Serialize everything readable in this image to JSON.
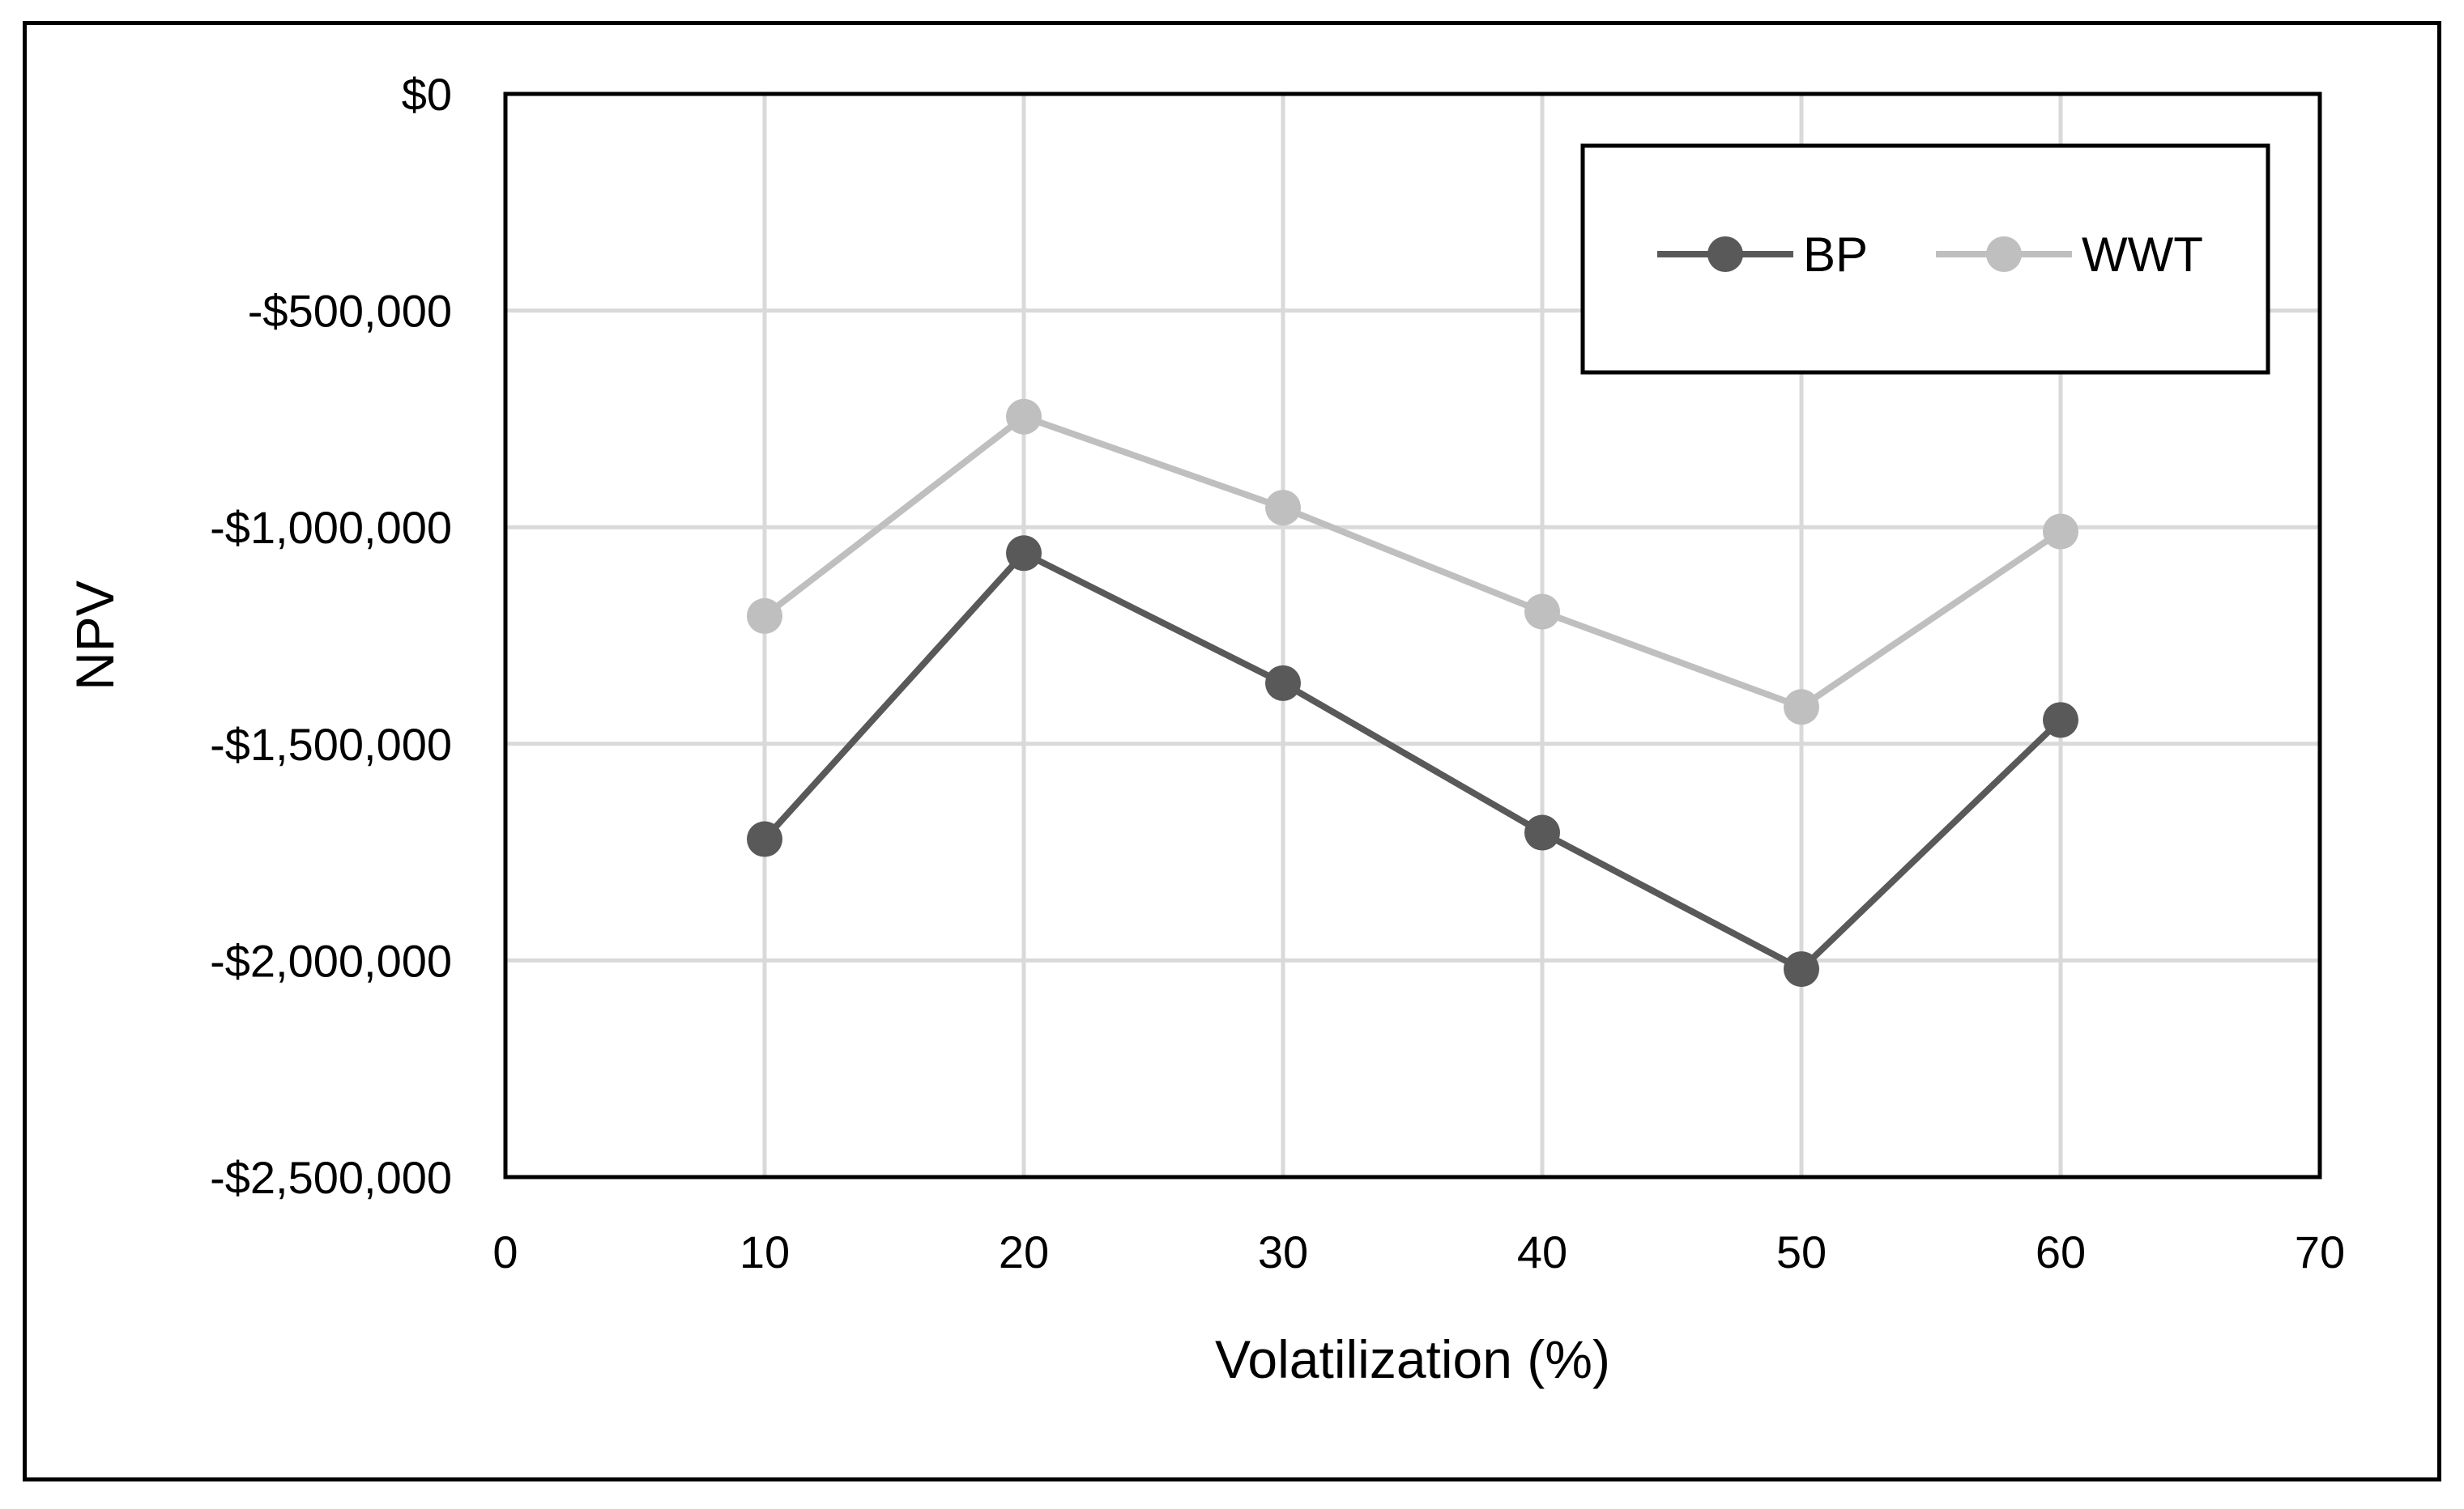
{
  "chart_data": {
    "type": "line",
    "title": "",
    "xlabel": "Volatilization (%)",
    "ylabel": "NPV",
    "xlim": [
      0,
      70
    ],
    "ylim": [
      -2500000,
      0
    ],
    "x_ticks": [
      0,
      10,
      20,
      30,
      40,
      50,
      60,
      70
    ],
    "x_tick_labels": [
      "0",
      "10",
      "20",
      "30",
      "40",
      "50",
      "60",
      "70"
    ],
    "y_ticks": [
      0,
      -500000,
      -1000000,
      -1500000,
      -2000000,
      -2500000
    ],
    "y_tick_labels": [
      "$0",
      "-$500,000",
      "-$1,000,000",
      "-$1,500,000",
      "-$2,000,000",
      "-$2,500,000"
    ],
    "grid": true,
    "legend_position": "top-right",
    "x": [
      10,
      20,
      30,
      40,
      50,
      60
    ],
    "series": [
      {
        "name": "BP",
        "color": "#595959",
        "values": [
          -1720000,
          -1060000,
          -1360000,
          -1705000,
          -2020000,
          -1445000
        ]
      },
      {
        "name": "WWT",
        "color": "#bfbfbf",
        "values": [
          -1205000,
          -745000,
          -955000,
          -1195000,
          -1415000,
          -1010000
        ]
      }
    ],
    "colors": {
      "grid": "#d9d9d9",
      "axis": "#000000",
      "legend_border": "#000000"
    }
  }
}
